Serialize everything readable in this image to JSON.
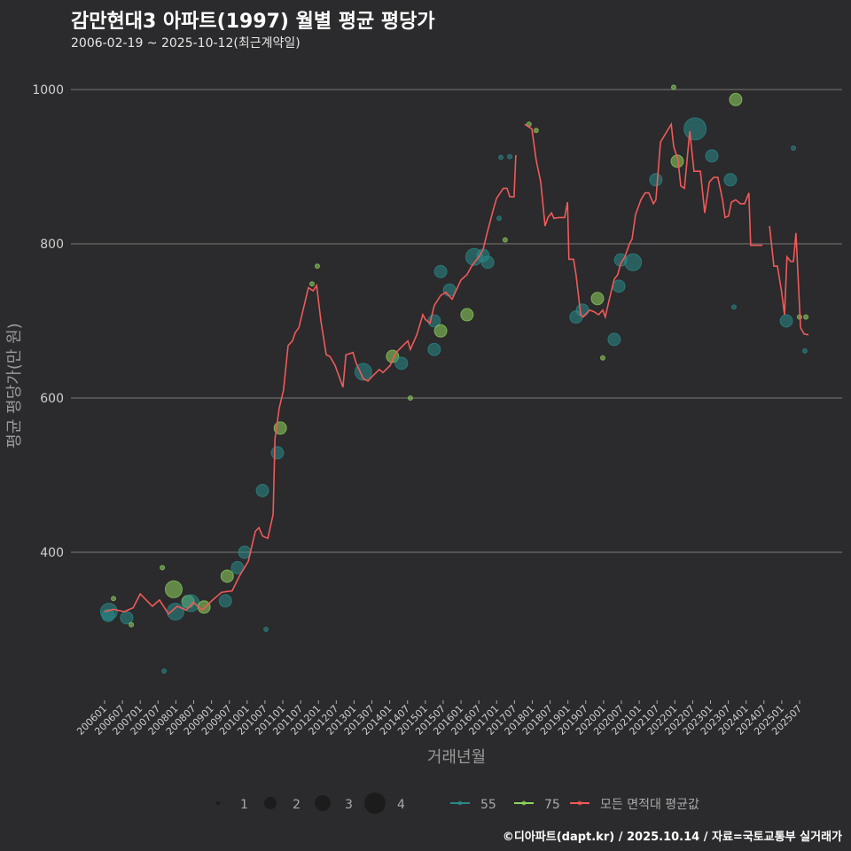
{
  "title": "감만현대3 아파트(1997) 월별 평균 평당가",
  "subtitle": "2006-02-19 ~ 2025-10-12(최근계약일)",
  "caption": "©디아파트(dapt.kr) / 2025.10.14 / 자료=국토교통부 실거래가",
  "colors": {
    "area55": "#2a8a8a",
    "area75": "#8fd45e",
    "avg": "#f05a5a",
    "background": "#2b2a2c",
    "grid": "#6a6a6a"
  },
  "chart_data": {
    "type": "line",
    "title": "감만현대3 아파트(1997) 월별 평균 평당가",
    "xlabel": "거래년월",
    "ylabel": "평균 평당가(만 원)",
    "ylim": [
      208,
      1030
    ],
    "xlim": [
      2005.7,
      2025.95
    ],
    "yticks": [
      400,
      600,
      800,
      1000
    ],
    "xticks": [
      "200601",
      "200607",
      "200701",
      "200707",
      "200801",
      "200807",
      "200901",
      "200907",
      "201001",
      "201007",
      "201101",
      "201107",
      "201201",
      "201207",
      "201301",
      "201307",
      "201401",
      "201407",
      "201501",
      "201507",
      "201601",
      "201607",
      "201701",
      "201707",
      "201801",
      "201807",
      "201901",
      "201907",
      "202001",
      "202007",
      "202101",
      "202107",
      "202201",
      "202207",
      "202301",
      "202307",
      "202401",
      "202407",
      "202501",
      "202507"
    ],
    "grid": true,
    "legend": {
      "size_title": "",
      "sizes": [
        1,
        2,
        3,
        4
      ],
      "series": [
        "55",
        "75",
        "모든 면적대 평균값"
      ],
      "placement": "bottom"
    },
    "avg_line": [
      [
        2006.0,
        323
      ],
      [
        2006.25,
        326
      ],
      [
        2006.55,
        323
      ],
      [
        2006.8,
        328
      ],
      [
        2007.0,
        346
      ],
      [
        2007.17,
        338
      ],
      [
        2007.34,
        330
      ],
      [
        2007.54,
        338
      ],
      [
        2007.79,
        320
      ],
      [
        2008.04,
        330
      ],
      [
        2008.29,
        325
      ],
      [
        2008.49,
        335
      ],
      [
        2008.74,
        325
      ],
      [
        2009.03,
        338
      ],
      [
        2009.28,
        348
      ],
      [
        2009.58,
        350
      ],
      [
        2009.78,
        369
      ],
      [
        2010.03,
        388
      ],
      [
        2010.23,
        427
      ],
      [
        2010.33,
        432
      ],
      [
        2010.43,
        421
      ],
      [
        2010.58,
        418
      ],
      [
        2010.73,
        449
      ],
      [
        2010.78,
        547
      ],
      [
        2010.9,
        587
      ],
      [
        2011.02,
        610
      ],
      [
        2011.15,
        668
      ],
      [
        2011.27,
        674
      ],
      [
        2011.35,
        685
      ],
      [
        2011.45,
        691
      ],
      [
        2011.57,
        714
      ],
      [
        2011.72,
        743
      ],
      [
        2011.85,
        739
      ],
      [
        2011.95,
        746
      ],
      [
        2012.07,
        700
      ],
      [
        2012.22,
        656
      ],
      [
        2012.32,
        654
      ],
      [
        2012.47,
        642
      ],
      [
        2012.69,
        614
      ],
      [
        2012.77,
        656
      ],
      [
        2012.97,
        659
      ],
      [
        2013.06,
        645
      ],
      [
        2013.26,
        625
      ],
      [
        2013.39,
        622
      ],
      [
        2013.51,
        628
      ],
      [
        2013.71,
        637
      ],
      [
        2013.81,
        633
      ],
      [
        2014.01,
        642
      ],
      [
        2014.18,
        659
      ],
      [
        2014.33,
        666
      ],
      [
        2014.51,
        674
      ],
      [
        2014.58,
        663
      ],
      [
        2014.76,
        682
      ],
      [
        2014.93,
        708
      ],
      [
        2015.0,
        702
      ],
      [
        2015.13,
        697
      ],
      [
        2015.25,
        720
      ],
      [
        2015.43,
        733
      ],
      [
        2015.58,
        737
      ],
      [
        2015.75,
        728
      ],
      [
        2015.95,
        748
      ],
      [
        2016.0,
        753
      ],
      [
        2016.17,
        760
      ],
      [
        2016.3,
        771
      ],
      [
        2016.5,
        783
      ],
      [
        2016.62,
        792
      ],
      [
        2016.75,
        817
      ],
      [
        2016.9,
        843
      ],
      [
        2017.0,
        859
      ],
      [
        2017.19,
        872
      ],
      [
        2017.29,
        872
      ],
      [
        2017.37,
        861
      ],
      [
        2017.49,
        861
      ],
      [
        2017.54,
        915
      ],
      null,
      [
        2017.79,
        955
      ],
      [
        2017.99,
        949
      ],
      [
        2018.11,
        909
      ],
      [
        2018.24,
        880
      ],
      [
        2018.36,
        823
      ],
      [
        2018.44,
        834
      ],
      [
        2018.54,
        840
      ],
      [
        2018.61,
        833
      ],
      [
        2018.74,
        834
      ],
      [
        2018.91,
        834
      ],
      [
        2018.99,
        854
      ],
      [
        2019.03,
        780
      ],
      [
        2019.16,
        780
      ],
      [
        2019.23,
        760
      ],
      [
        2019.36,
        708
      ],
      [
        2019.43,
        705
      ],
      [
        2019.61,
        714
      ],
      [
        2019.73,
        712
      ],
      [
        2019.86,
        708
      ],
      [
        2019.98,
        714
      ],
      [
        2020.05,
        705
      ],
      [
        2020.18,
        731
      ],
      [
        2020.3,
        754
      ],
      [
        2020.4,
        760
      ],
      [
        2020.48,
        774
      ],
      [
        2020.6,
        783
      ],
      [
        2020.73,
        800
      ],
      [
        2020.8,
        806
      ],
      [
        2020.9,
        838
      ],
      [
        2021.05,
        857
      ],
      [
        2021.17,
        866
      ],
      [
        2021.27,
        866
      ],
      [
        2021.4,
        852
      ],
      [
        2021.47,
        857
      ],
      [
        2021.6,
        932
      ],
      [
        2021.9,
        955
      ],
      [
        2021.97,
        926
      ],
      [
        2022.09,
        909
      ],
      [
        2022.17,
        875
      ],
      [
        2022.27,
        872
      ],
      [
        2022.42,
        946
      ],
      [
        2022.54,
        894
      ],
      [
        2022.72,
        894
      ],
      [
        2022.84,
        840
      ],
      [
        2022.97,
        880
      ],
      [
        2023.09,
        886
      ],
      [
        2023.21,
        886
      ],
      [
        2023.34,
        857
      ],
      [
        2023.41,
        834
      ],
      [
        2023.51,
        836
      ],
      [
        2023.59,
        854
      ],
      [
        2023.71,
        857
      ],
      [
        2023.84,
        852
      ],
      [
        2023.96,
        852
      ],
      [
        2024.08,
        866
      ],
      [
        2024.13,
        798
      ],
      [
        2024.46,
        798
      ],
      null,
      [
        2024.66,
        823
      ],
      [
        2024.78,
        771
      ],
      [
        2024.88,
        771
      ],
      [
        2025.0,
        737
      ],
      [
        2025.08,
        708
      ],
      [
        2025.15,
        783
      ],
      [
        2025.25,
        777
      ],
      [
        2025.33,
        777
      ],
      [
        2025.4,
        814
      ],
      [
        2025.53,
        691
      ],
      [
        2025.63,
        683
      ],
      [
        2025.75,
        682
      ]
    ],
    "points": [
      {
        "x": 2006.12,
        "y": 323,
        "size": 3,
        "area": "55"
      },
      {
        "x": 2006.1,
        "y": 318,
        "size": 2,
        "area": "55"
      },
      {
        "x": 2006.62,
        "y": 315,
        "size": 2,
        "area": "55"
      },
      {
        "x": 2006.25,
        "y": 340,
        "size": 1,
        "area": "75"
      },
      {
        "x": 2006.75,
        "y": 306,
        "size": 1,
        "area": "75"
      },
      {
        "x": 2007.67,
        "y": 246,
        "size": 1,
        "area": "55"
      },
      {
        "x": 2007.62,
        "y": 380,
        "size": 1,
        "area": "75"
      },
      {
        "x": 2007.94,
        "y": 352,
        "size": 3,
        "area": "75"
      },
      {
        "x": 2007.99,
        "y": 323,
        "size": 3,
        "area": "55"
      },
      {
        "x": 2008.34,
        "y": 336,
        "size": 2,
        "area": "75"
      },
      {
        "x": 2008.42,
        "y": 334,
        "size": 3,
        "area": "55"
      },
      {
        "x": 2008.79,
        "y": 329,
        "size": 2,
        "area": "75"
      },
      {
        "x": 2009.44,
        "y": 369,
        "size": 2,
        "area": "75"
      },
      {
        "x": 2009.39,
        "y": 337,
        "size": 2,
        "area": "55"
      },
      {
        "x": 2009.73,
        "y": 380,
        "size": 2,
        "area": "55"
      },
      {
        "x": 2009.93,
        "y": 400,
        "size": 2,
        "area": "55"
      },
      {
        "x": 2010.43,
        "y": 480,
        "size": 2,
        "area": "55"
      },
      {
        "x": 2010.93,
        "y": 561,
        "size": 2,
        "area": "75"
      },
      {
        "x": 2010.85,
        "y": 529,
        "size": 2,
        "area": "55"
      },
      {
        "x": 2010.53,
        "y": 300,
        "size": 1,
        "area": "55"
      },
      {
        "x": 2011.97,
        "y": 771,
        "size": 1,
        "area": "75"
      },
      {
        "x": 2011.82,
        "y": 748,
        "size": 1,
        "area": "75"
      },
      {
        "x": 2013.26,
        "y": 634,
        "size": 3,
        "area": "55"
      },
      {
        "x": 2014.08,
        "y": 654,
        "size": 2,
        "area": "75"
      },
      {
        "x": 2014.33,
        "y": 645,
        "size": 2,
        "area": "55"
      },
      {
        "x": 2014.58,
        "y": 600,
        "size": 1,
        "area": "75"
      },
      {
        "x": 2015.25,
        "y": 700,
        "size": 2,
        "area": "55"
      },
      {
        "x": 2015.43,
        "y": 687,
        "size": 2,
        "area": "75"
      },
      {
        "x": 2015.25,
        "y": 663,
        "size": 2,
        "area": "55"
      },
      {
        "x": 2015.43,
        "y": 764,
        "size": 2,
        "area": "55"
      },
      {
        "x": 2015.68,
        "y": 740,
        "size": 2,
        "area": "55"
      },
      {
        "x": 2016.17,
        "y": 708,
        "size": 2,
        "area": "75"
      },
      {
        "x": 2016.37,
        "y": 783,
        "size": 3,
        "area": "55"
      },
      {
        "x": 2016.62,
        "y": 785,
        "size": 2,
        "area": "55"
      },
      {
        "x": 2016.75,
        "y": 776,
        "size": 2,
        "area": "55"
      },
      {
        "x": 2017.07,
        "y": 833,
        "size": 1,
        "area": "55"
      },
      {
        "x": 2017.24,
        "y": 805,
        "size": 1,
        "area": "75"
      },
      {
        "x": 2017.37,
        "y": 913,
        "size": 1,
        "area": "55"
      },
      {
        "x": 2017.12,
        "y": 912,
        "size": 1,
        "area": "55"
      },
      {
        "x": 2017.91,
        "y": 955,
        "size": 1,
        "area": "75"
      },
      {
        "x": 2018.11,
        "y": 947,
        "size": 1,
        "area": "75"
      },
      {
        "x": 2019.23,
        "y": 705,
        "size": 2,
        "area": "55"
      },
      {
        "x": 2019.41,
        "y": 714,
        "size": 2,
        "area": "55"
      },
      {
        "x": 2019.83,
        "y": 729,
        "size": 2,
        "area": "75"
      },
      {
        "x": 2019.98,
        "y": 652,
        "size": 1,
        "area": "75"
      },
      {
        "x": 2020.3,
        "y": 676,
        "size": 2,
        "area": "55"
      },
      {
        "x": 2020.43,
        "y": 745,
        "size": 2,
        "area": "55"
      },
      {
        "x": 2020.48,
        "y": 779,
        "size": 2,
        "area": "55"
      },
      {
        "x": 2020.83,
        "y": 776,
        "size": 3,
        "area": "55"
      },
      {
        "x": 2021.47,
        "y": 883,
        "size": 2,
        "area": "55"
      },
      {
        "x": 2021.97,
        "y": 1003,
        "size": 1,
        "area": "75"
      },
      {
        "x": 2022.07,
        "y": 907,
        "size": 2,
        "area": "75"
      },
      {
        "x": 2022.57,
        "y": 949,
        "size": 4,
        "area": "55"
      },
      {
        "x": 2023.04,
        "y": 914,
        "size": 2,
        "area": "55"
      },
      {
        "x": 2023.56,
        "y": 883,
        "size": 2,
        "area": "55"
      },
      {
        "x": 2023.71,
        "y": 987,
        "size": 2,
        "area": "75"
      },
      {
        "x": 2023.66,
        "y": 718,
        "size": 1,
        "area": "55"
      },
      {
        "x": 2025.13,
        "y": 700,
        "size": 2,
        "area": "55"
      },
      {
        "x": 2025.65,
        "y": 661,
        "size": 1,
        "area": "55"
      },
      {
        "x": 2025.33,
        "y": 924,
        "size": 1,
        "area": "55"
      },
      {
        "x": 2025.5,
        "y": 705,
        "size": 1,
        "area": "75"
      },
      {
        "x": 2025.68,
        "y": 705,
        "size": 1,
        "area": "75"
      }
    ]
  }
}
